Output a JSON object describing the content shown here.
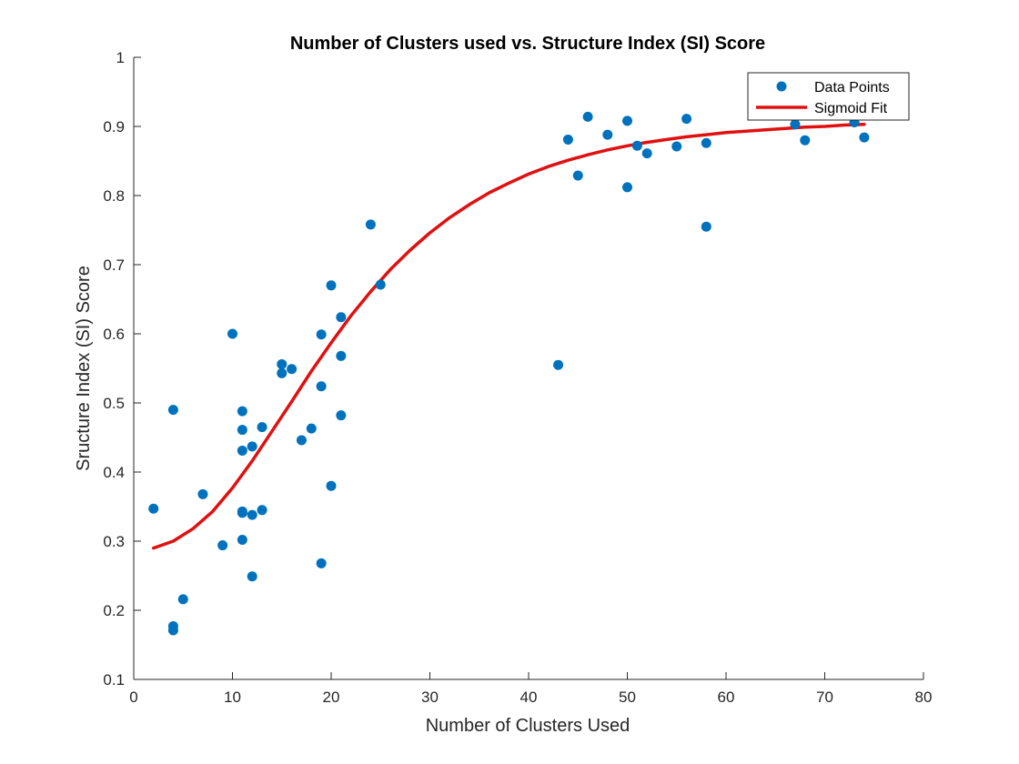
{
  "chart_data": {
    "type": "scatter",
    "title": "Number of Clusters used vs. Structure Index (SI) Score",
    "xlabel": "Number of Clusters Used",
    "ylabel": "Sructure Index (SI) Score",
    "xlim": [
      0,
      80
    ],
    "ylim": [
      0.1,
      1
    ],
    "xticks": [
      0,
      10,
      20,
      30,
      40,
      50,
      60,
      70,
      80
    ],
    "yticks": [
      0.1,
      0.2,
      0.3,
      0.4,
      0.5,
      0.6,
      0.7,
      0.8,
      0.9,
      1
    ],
    "grid": false,
    "legend": {
      "position": "top-right",
      "entries": [
        "Data Points",
        "Sigmoid Fit"
      ]
    },
    "colors": {
      "points": "#0072BD",
      "fit": "#E01010",
      "axes": "#262626"
    },
    "series": [
      {
        "name": "Data Points",
        "kind": "scatter",
        "points": [
          [
            2,
            0.347
          ],
          [
            4,
            0.49
          ],
          [
            4,
            0.177
          ],
          [
            4,
            0.171
          ],
          [
            5,
            0.216
          ],
          [
            7,
            0.368
          ],
          [
            9,
            0.294
          ],
          [
            10,
            0.6
          ],
          [
            11,
            0.488
          ],
          [
            11,
            0.461
          ],
          [
            11,
            0.431
          ],
          [
            11,
            0.343
          ],
          [
            11,
            0.341
          ],
          [
            11,
            0.302
          ],
          [
            12,
            0.437
          ],
          [
            12,
            0.338
          ],
          [
            12,
            0.249
          ],
          [
            13,
            0.465
          ],
          [
            13,
            0.345
          ],
          [
            15,
            0.556
          ],
          [
            15,
            0.543
          ],
          [
            16,
            0.549
          ],
          [
            17,
            0.446
          ],
          [
            18,
            0.463
          ],
          [
            19,
            0.599
          ],
          [
            19,
            0.524
          ],
          [
            19,
            0.268
          ],
          [
            20,
            0.67
          ],
          [
            20,
            0.38
          ],
          [
            21,
            0.624
          ],
          [
            21,
            0.568
          ],
          [
            21,
            0.482
          ],
          [
            24,
            0.758
          ],
          [
            25,
            0.671
          ],
          [
            43,
            0.555
          ],
          [
            44,
            0.881
          ],
          [
            45,
            0.829
          ],
          [
            46,
            0.914
          ],
          [
            48,
            0.888
          ],
          [
            50,
            0.908
          ],
          [
            50,
            0.812
          ],
          [
            51,
            0.872
          ],
          [
            52,
            0.861
          ],
          [
            55,
            0.871
          ],
          [
            56,
            0.911
          ],
          [
            58,
            0.876
          ],
          [
            58,
            0.755
          ],
          [
            67,
            0.903
          ],
          [
            68,
            0.88
          ],
          [
            73,
            0.906
          ],
          [
            74,
            0.884
          ]
        ]
      },
      {
        "name": "Sigmoid Fit",
        "kind": "line",
        "points": [
          [
            2,
            0.29
          ],
          [
            4,
            0.3
          ],
          [
            6,
            0.318
          ],
          [
            8,
            0.343
          ],
          [
            10,
            0.377
          ],
          [
            12,
            0.416
          ],
          [
            14,
            0.459
          ],
          [
            16,
            0.502
          ],
          [
            18,
            0.546
          ],
          [
            20,
            0.587
          ],
          [
            22,
            0.626
          ],
          [
            24,
            0.661
          ],
          [
            26,
            0.693
          ],
          [
            28,
            0.721
          ],
          [
            30,
            0.746
          ],
          [
            32,
            0.768
          ],
          [
            34,
            0.787
          ],
          [
            36,
            0.804
          ],
          [
            38,
            0.818
          ],
          [
            40,
            0.831
          ],
          [
            42,
            0.842
          ],
          [
            44,
            0.851
          ],
          [
            46,
            0.859
          ],
          [
            48,
            0.866
          ],
          [
            50,
            0.872
          ],
          [
            52,
            0.877
          ],
          [
            54,
            0.881
          ],
          [
            56,
            0.885
          ],
          [
            58,
            0.888
          ],
          [
            60,
            0.891
          ],
          [
            62,
            0.893
          ],
          [
            64,
            0.895
          ],
          [
            66,
            0.897
          ],
          [
            68,
            0.899
          ],
          [
            70,
            0.9
          ],
          [
            72,
            0.902
          ],
          [
            74,
            0.903
          ]
        ]
      }
    ]
  }
}
